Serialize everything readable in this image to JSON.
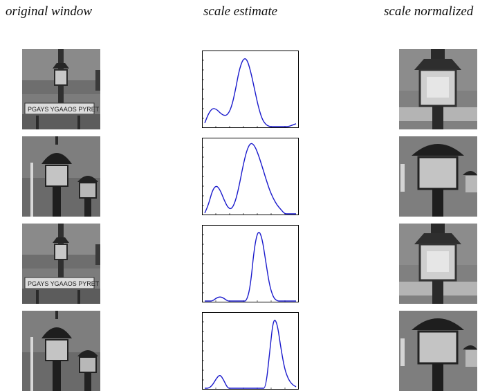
{
  "headers": {
    "original": "original window",
    "estimate": "scale estimate",
    "normalized": "scale normalized"
  },
  "rows": [
    {
      "original_image": "lamp-post-with-sign",
      "normalized_image": "lamp-closeup-sign"
    },
    {
      "original_image": "two-lamps",
      "normalized_image": "two-lamps-closeup"
    },
    {
      "original_image": "lamp-post-with-sign",
      "normalized_image": "lamp-closeup-sign"
    },
    {
      "original_image": "two-lamps",
      "normalized_image": "two-lamps-closeup"
    }
  ],
  "sign_text": "PGAYS YGAAOS PYRET",
  "chart_data": [
    {
      "type": "line",
      "title": "",
      "xlabel": "",
      "ylabel": "",
      "xlim": [
        0,
        100
      ],
      "ylim": [
        0,
        1
      ],
      "line_color": "#1a1acc",
      "series": [
        {
          "x": [
            0,
            4,
            8,
            12,
            16,
            20,
            24,
            28,
            32,
            36,
            40,
            44,
            48,
            52,
            56,
            60,
            64,
            68,
            72,
            76,
            80,
            84,
            88,
            92,
            96
          ],
          "values": [
            0.05,
            0.18,
            0.25,
            0.24,
            0.19,
            0.15,
            0.16,
            0.26,
            0.48,
            0.76,
            0.92,
            0.93,
            0.77,
            0.53,
            0.29,
            0.11,
            0.03,
            0.0,
            0.0,
            0.0,
            0.0,
            0.0,
            0.0,
            0.02,
            0.04
          ]
        }
      ]
    },
    {
      "type": "line",
      "title": "",
      "xlabel": "",
      "ylabel": "",
      "xlim": [
        0,
        100
      ],
      "ylim": [
        0,
        1
      ],
      "line_color": "#1a1acc",
      "series": [
        {
          "x": [
            0,
            4,
            8,
            12,
            16,
            20,
            24,
            28,
            32,
            36,
            40,
            44,
            48,
            52,
            56,
            60,
            64,
            68,
            72,
            76,
            80,
            84,
            88,
            92,
            96
          ],
          "values": [
            0.01,
            0.13,
            0.32,
            0.39,
            0.33,
            0.2,
            0.09,
            0.06,
            0.16,
            0.37,
            0.64,
            0.86,
            0.97,
            0.94,
            0.82,
            0.66,
            0.49,
            0.33,
            0.21,
            0.12,
            0.06,
            0.0,
            0.0,
            0.0,
            0.0
          ]
        }
      ]
    },
    {
      "type": "line",
      "title": "",
      "xlabel": "",
      "ylabel": "",
      "xlim": [
        0,
        100
      ],
      "ylim": [
        0,
        1
      ],
      "line_color": "#1a1acc",
      "series": [
        {
          "x": [
            0,
            4,
            8,
            12,
            16,
            20,
            24,
            28,
            32,
            36,
            40,
            44,
            48,
            52,
            56,
            60,
            64,
            68,
            72,
            76,
            80,
            84,
            88,
            92,
            96
          ],
          "values": [
            0.0,
            0.0,
            0.0,
            0.04,
            0.06,
            0.04,
            0.0,
            0.0,
            0.0,
            0.0,
            0.0,
            0.0,
            0.2,
            0.72,
            0.97,
            0.88,
            0.55,
            0.22,
            0.05,
            0.0,
            0.0,
            0.0,
            0.0,
            0.0,
            0.0
          ]
        }
      ]
    },
    {
      "type": "line",
      "title": "",
      "xlabel": "",
      "ylabel": "",
      "xlim": [
        0,
        100
      ],
      "ylim": [
        0,
        1
      ],
      "line_color": "#1a1acc",
      "series": [
        {
          "x": [
            0,
            4,
            8,
            12,
            16,
            20,
            24,
            28,
            32,
            36,
            40,
            44,
            48,
            52,
            56,
            60,
            64,
            68,
            72,
            76,
            80,
            84,
            88,
            92,
            96
          ],
          "values": [
            0.0,
            0.0,
            0.04,
            0.13,
            0.19,
            0.11,
            0.0,
            0.0,
            0.0,
            0.0,
            0.0,
            0.0,
            0.0,
            0.0,
            0.0,
            0.0,
            0.0,
            0.45,
            0.95,
            0.9,
            0.55,
            0.26,
            0.12,
            0.05,
            0.02
          ]
        }
      ]
    }
  ]
}
